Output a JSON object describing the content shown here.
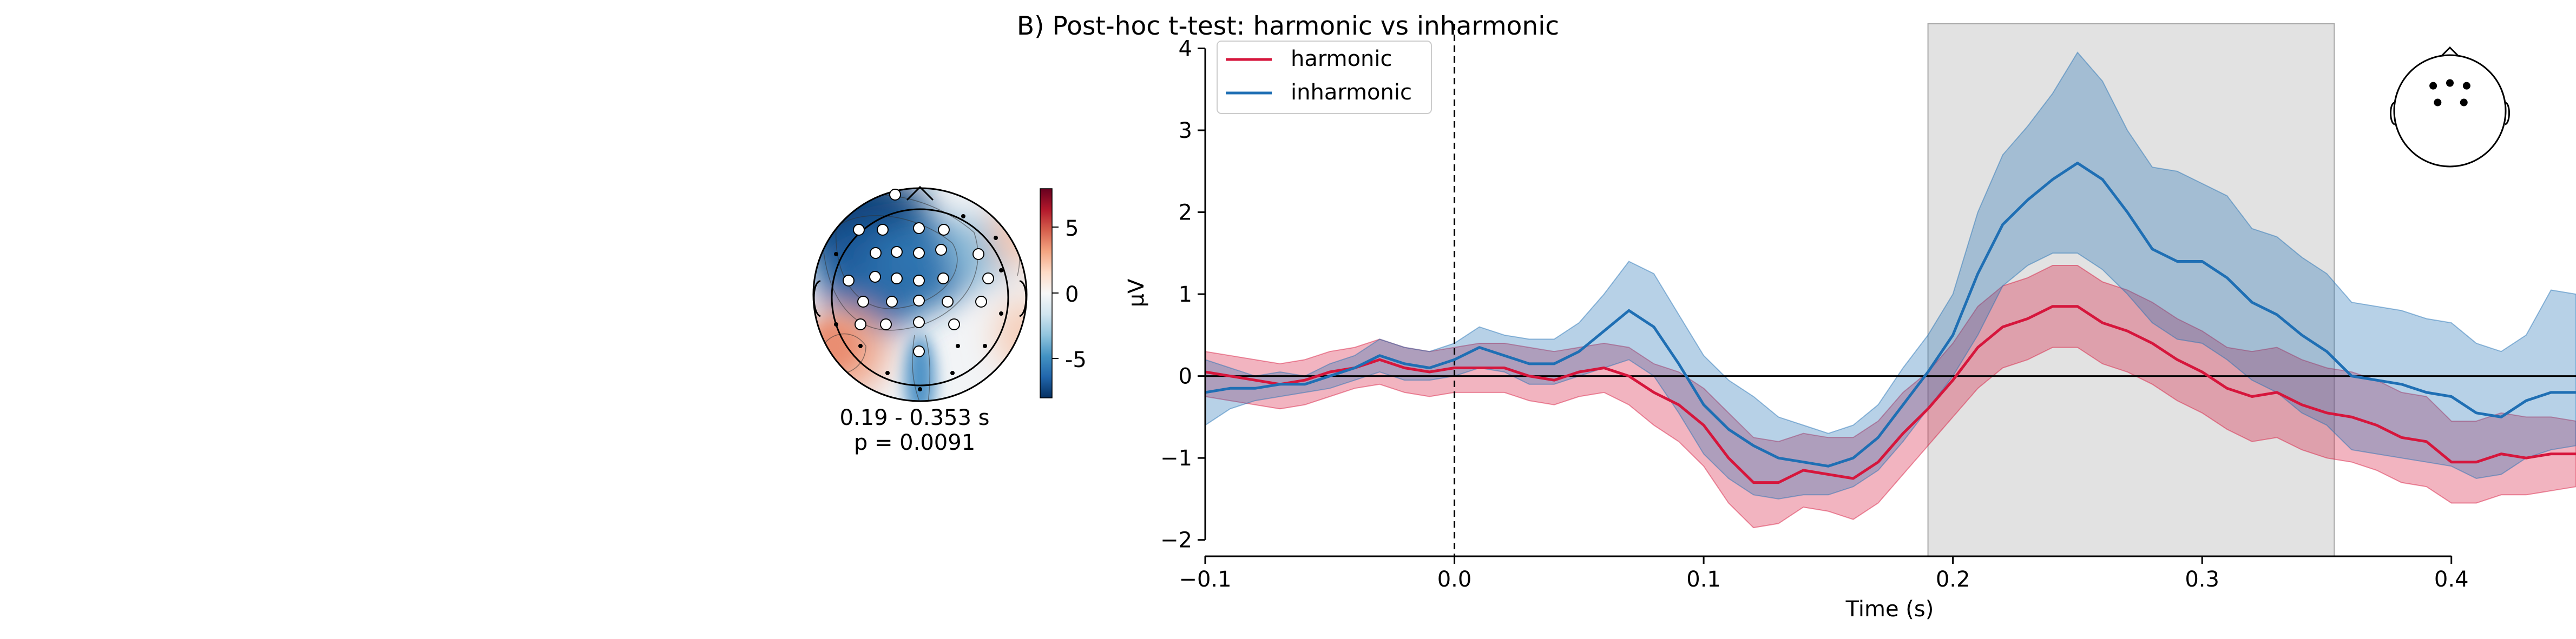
{
  "figure_title": "B) Post-hoc t-test: harmonic vs inharmonic",
  "topomap": {
    "time_window": "0.19 - 0.353 s",
    "p_value": "p = 0.0091",
    "colorbar_ticks": [
      "5",
      "0",
      "-5"
    ],
    "colorbar_range": [
      -8,
      8
    ],
    "colormap": [
      "#053061",
      "#2166ac",
      "#4393c3",
      "#92c5de",
      "#d1e5f0",
      "#f7f7f7",
      "#fddbc7",
      "#f4a582",
      "#d6604d",
      "#b2182b",
      "#67001f"
    ]
  },
  "chart_data": {
    "type": "line",
    "xlabel": "Time (s)",
    "ylabel": "µV",
    "xlim": [
      -0.1,
      0.45
    ],
    "ylim": [
      -2.2,
      4.3
    ],
    "xticks": [
      -0.1,
      0.0,
      0.1,
      0.2,
      0.3,
      0.4
    ],
    "xtick_labels": [
      "−0.1",
      "0.0",
      "0.1",
      "0.2",
      "0.3",
      "0.4"
    ],
    "yticks": [
      -2,
      -1,
      0,
      1,
      2,
      3,
      4
    ],
    "ytick_labels": [
      "−2",
      "−1",
      "0",
      "1",
      "2",
      "3",
      "4"
    ],
    "highlight_window": [
      0.19,
      0.353
    ],
    "stimulus_onset": 0.0,
    "legend_position": "upper-left",
    "x": [
      -0.1,
      -0.09,
      -0.08,
      -0.07,
      -0.06,
      -0.05,
      -0.04,
      -0.03,
      -0.02,
      -0.01,
      0.0,
      0.01,
      0.02,
      0.03,
      0.04,
      0.05,
      0.06,
      0.07,
      0.08,
      0.09,
      0.1,
      0.11,
      0.12,
      0.13,
      0.14,
      0.15,
      0.16,
      0.17,
      0.18,
      0.19,
      0.2,
      0.21,
      0.22,
      0.23,
      0.24,
      0.25,
      0.26,
      0.27,
      0.28,
      0.29,
      0.3,
      0.31,
      0.32,
      0.33,
      0.34,
      0.35,
      0.36,
      0.37,
      0.38,
      0.39,
      0.4,
      0.41,
      0.42,
      0.43,
      0.44,
      0.45
    ],
    "series": [
      {
        "name": "harmonic",
        "color": "#d6163c",
        "values": [
          0.05,
          0.0,
          -0.05,
          -0.1,
          -0.05,
          0.05,
          0.1,
          0.2,
          0.1,
          0.05,
          0.1,
          0.1,
          0.1,
          0.0,
          -0.05,
          0.05,
          0.1,
          0.0,
          -0.2,
          -0.35,
          -0.6,
          -1.0,
          -1.3,
          -1.3,
          -1.15,
          -1.2,
          -1.25,
          -1.05,
          -0.7,
          -0.4,
          -0.05,
          0.35,
          0.6,
          0.7,
          0.85,
          0.85,
          0.65,
          0.55,
          0.4,
          0.2,
          0.05,
          -0.15,
          -0.25,
          -0.2,
          -0.35,
          -0.45,
          -0.5,
          -0.6,
          -0.75,
          -0.8,
          -1.05,
          -1.05,
          -0.95,
          -1.0,
          -0.95,
          -0.95
        ],
        "lower": [
          -0.25,
          -0.3,
          -0.35,
          -0.4,
          -0.35,
          -0.25,
          -0.15,
          -0.1,
          -0.2,
          -0.25,
          -0.2,
          -0.2,
          -0.2,
          -0.3,
          -0.35,
          -0.25,
          -0.2,
          -0.35,
          -0.6,
          -0.8,
          -1.1,
          -1.55,
          -1.85,
          -1.8,
          -1.6,
          -1.65,
          -1.75,
          -1.55,
          -1.2,
          -0.85,
          -0.5,
          -0.15,
          0.1,
          0.2,
          0.35,
          0.35,
          0.15,
          0.05,
          -0.1,
          -0.3,
          -0.45,
          -0.65,
          -0.8,
          -0.75,
          -0.9,
          -1.0,
          -1.05,
          -1.15,
          -1.3,
          -1.35,
          -1.55,
          -1.55,
          -1.45,
          -1.45,
          -1.4,
          -1.35
        ],
        "upper": [
          0.3,
          0.25,
          0.2,
          0.15,
          0.2,
          0.3,
          0.35,
          0.45,
          0.35,
          0.3,
          0.35,
          0.4,
          0.4,
          0.35,
          0.3,
          0.35,
          0.4,
          0.35,
          0.15,
          0.05,
          -0.15,
          -0.45,
          -0.75,
          -0.8,
          -0.7,
          -0.75,
          -0.75,
          -0.55,
          -0.2,
          0.05,
          0.4,
          0.85,
          1.1,
          1.2,
          1.35,
          1.35,
          1.15,
          1.05,
          0.9,
          0.7,
          0.55,
          0.35,
          0.3,
          0.35,
          0.2,
          0.1,
          0.05,
          -0.05,
          -0.2,
          -0.25,
          -0.55,
          -0.55,
          -0.45,
          -0.5,
          -0.5,
          -0.55
        ]
      },
      {
        "name": "inharmonic",
        "color": "#1f6fb4",
        "values": [
          -0.2,
          -0.15,
          -0.15,
          -0.1,
          -0.1,
          0.0,
          0.1,
          0.25,
          0.15,
          0.1,
          0.2,
          0.35,
          0.25,
          0.15,
          0.15,
          0.3,
          0.55,
          0.8,
          0.6,
          0.15,
          -0.35,
          -0.65,
          -0.85,
          -1.0,
          -1.05,
          -1.1,
          -1.0,
          -0.75,
          -0.35,
          0.05,
          0.5,
          1.25,
          1.85,
          2.15,
          2.4,
          2.6,
          2.4,
          2.0,
          1.55,
          1.4,
          1.4,
          1.2,
          0.9,
          0.75,
          0.5,
          0.3,
          0.0,
          -0.05,
          -0.1,
          -0.2,
          -0.25,
          -0.45,
          -0.5,
          -0.3,
          -0.2,
          -0.2
        ],
        "lower": [
          -0.6,
          -0.4,
          -0.3,
          -0.25,
          -0.2,
          -0.15,
          -0.05,
          0.05,
          -0.05,
          -0.05,
          0.0,
          0.1,
          0.05,
          -0.1,
          -0.1,
          0.0,
          0.1,
          0.2,
          0.0,
          -0.45,
          -0.95,
          -1.25,
          -1.45,
          -1.5,
          -1.45,
          -1.45,
          -1.35,
          -1.15,
          -0.8,
          -0.4,
          0.0,
          0.5,
          1.1,
          1.35,
          1.5,
          1.5,
          1.3,
          1.0,
          0.65,
          0.45,
          0.4,
          0.2,
          -0.05,
          -0.2,
          -0.45,
          -0.6,
          -0.9,
          -0.95,
          -1.0,
          -1.05,
          -1.1,
          -1.25,
          -1.2,
          -1.0,
          -0.9,
          -0.85
        ],
        "upper": [
          0.2,
          0.1,
          0.0,
          0.05,
          0.0,
          0.15,
          0.25,
          0.45,
          0.35,
          0.3,
          0.4,
          0.6,
          0.5,
          0.45,
          0.45,
          0.65,
          1.0,
          1.4,
          1.25,
          0.75,
          0.25,
          -0.05,
          -0.25,
          -0.5,
          -0.6,
          -0.7,
          -0.6,
          -0.35,
          0.1,
          0.5,
          1.0,
          2.0,
          2.7,
          3.05,
          3.45,
          3.95,
          3.6,
          3.0,
          2.55,
          2.5,
          2.35,
          2.2,
          1.8,
          1.7,
          1.45,
          1.25,
          0.9,
          0.85,
          0.8,
          0.7,
          0.65,
          0.4,
          0.3,
          0.5,
          1.05,
          1.0
        ]
      }
    ]
  },
  "sensor_inset": {
    "sensors": [
      [
        -0.3,
        -0.45
      ],
      [
        0.0,
        -0.5
      ],
      [
        0.3,
        -0.45
      ],
      [
        -0.22,
        -0.15
      ],
      [
        0.25,
        -0.15
      ]
    ]
  }
}
